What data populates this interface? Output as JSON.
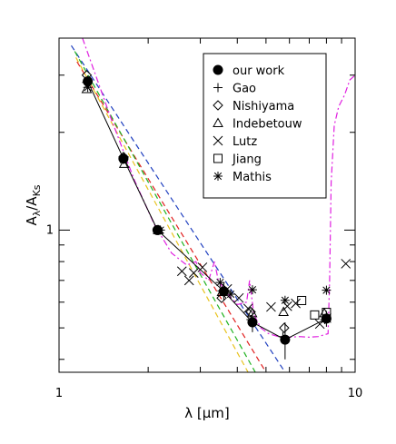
{
  "chart_data": {
    "type": "scatter",
    "title": "",
    "xlabel": {
      "main": "λ",
      "unit_open": "[",
      "unit_mu": "μ",
      "unit_rest": "m]"
    },
    "ylabel": {
      "main": "A",
      "sub1": "λ",
      "slash": "/A",
      "sub2": "Ks"
    },
    "x_scale": "log",
    "y_scale": "log",
    "xlim": [
      1,
      10
    ],
    "ylim": [
      0.365,
      3.9
    ],
    "x_tick_labels": [
      {
        "value": 1,
        "label": "1"
      },
      {
        "value": 10,
        "label": "10"
      }
    ],
    "y_tick_labels": [
      {
        "value": 1,
        "label": "1"
      }
    ],
    "grid": false,
    "legend_position": "top-right",
    "legend": [
      {
        "marker": "filled-circle",
        "label": "our work"
      },
      {
        "marker": "plus",
        "label": "Gao"
      },
      {
        "marker": "diamond",
        "label": "Nishiyama"
      },
      {
        "marker": "triangle",
        "label": "Indebetouw"
      },
      {
        "marker": "cross",
        "label": "Lutz"
      },
      {
        "marker": "square",
        "label": "Jiang"
      },
      {
        "marker": "asterisk",
        "label": "Mathis"
      }
    ],
    "series": [
      {
        "name": "our work",
        "marker": "filled-circle",
        "connected": true,
        "color": "#000000",
        "points": [
          {
            "x": 1.25,
            "y": 2.87,
            "err": 0.12
          },
          {
            "x": 1.65,
            "y": 1.66,
            "err": 0.06
          },
          {
            "x": 2.15,
            "y": 1.0,
            "err": 0.02
          },
          {
            "x": 3.6,
            "y": 0.648,
            "err": 0.04
          },
          {
            "x": 4.5,
            "y": 0.52,
            "err": 0.035
          },
          {
            "x": 5.8,
            "y": 0.46,
            "err": 0.06
          },
          {
            "x": 8.0,
            "y": 0.534,
            "err": 0.03
          }
        ]
      },
      {
        "name": "Gao",
        "marker": "plus",
        "color": "#000000",
        "points": [
          {
            "x": 1.24,
            "y": 2.85
          },
          {
            "x": 1.66,
            "y": 1.68
          },
          {
            "x": 2.16,
            "y": 1.0
          },
          {
            "x": 3.55,
            "y": 0.65
          },
          {
            "x": 4.45,
            "y": 0.53
          },
          {
            "x": 5.7,
            "y": 0.47
          },
          {
            "x": 7.9,
            "y": 0.53
          }
        ]
      },
      {
        "name": "Nishiyama",
        "marker": "diamond",
        "color": "#000000",
        "points": [
          {
            "x": 1.24,
            "y": 3.0
          },
          {
            "x": 1.65,
            "y": 1.68
          },
          {
            "x": 2.16,
            "y": 1.0
          },
          {
            "x": 3.54,
            "y": 0.618
          },
          {
            "x": 4.44,
            "y": 0.56
          },
          {
            "x": 5.76,
            "y": 0.5
          }
        ]
      },
      {
        "name": "Indebetouw",
        "marker": "triangle",
        "color": "#000000",
        "points": [
          {
            "x": 1.24,
            "y": 2.72
          },
          {
            "x": 1.66,
            "y": 1.6
          },
          {
            "x": 2.16,
            "y": 1.0
          },
          {
            "x": 3.55,
            "y": 0.645
          },
          {
            "x": 4.49,
            "y": 0.555
          },
          {
            "x": 5.73,
            "y": 0.56
          },
          {
            "x": 7.87,
            "y": 0.555
          }
        ]
      },
      {
        "name": "Lutz",
        "marker": "cross",
        "color": "#000000",
        "points": [
          {
            "x": 2.6,
            "y": 0.747
          },
          {
            "x": 2.75,
            "y": 0.7
          },
          {
            "x": 2.85,
            "y": 0.738
          },
          {
            "x": 3.05,
            "y": 0.768
          },
          {
            "x": 3.7,
            "y": 0.659
          },
          {
            "x": 4.05,
            "y": 0.618
          },
          {
            "x": 4.35,
            "y": 0.574
          },
          {
            "x": 5.2,
            "y": 0.58
          },
          {
            "x": 5.9,
            "y": 0.583
          },
          {
            "x": 6.3,
            "y": 0.595
          },
          {
            "x": 7.6,
            "y": 0.514
          },
          {
            "x": 8.0,
            "y": 0.536
          },
          {
            "x": 9.3,
            "y": 0.788
          }
        ]
      },
      {
        "name": "Jiang",
        "marker": "square",
        "color": "#000000",
        "points": [
          {
            "x": 6.6,
            "y": 0.607
          },
          {
            "x": 7.3,
            "y": 0.548
          },
          {
            "x": 8.0,
            "y": 0.558
          }
        ]
      },
      {
        "name": "Mathis",
        "marker": "asterisk",
        "color": "#000000",
        "points": [
          {
            "x": 1.25,
            "y": 2.75
          },
          {
            "x": 1.65,
            "y": 1.65
          },
          {
            "x": 2.2,
            "y": 1.0
          },
          {
            "x": 3.5,
            "y": 0.69
          },
          {
            "x": 3.8,
            "y": 0.635
          },
          {
            "x": 4.5,
            "y": 0.655
          },
          {
            "x": 5.8,
            "y": 0.608
          },
          {
            "x": 8.0,
            "y": 0.653
          }
        ]
      }
    ],
    "model_curves": [
      {
        "style": "dashed",
        "color": "#1f3fbf",
        "points": [
          {
            "x": 1.1,
            "y": 3.7
          },
          {
            "x": 5.8,
            "y": 0.365
          }
        ]
      },
      {
        "style": "dashed",
        "color": "#e11f1f",
        "points": [
          {
            "x": 1.15,
            "y": 3.3
          },
          {
            "x": 5.0,
            "y": 0.365
          }
        ]
      },
      {
        "style": "dashed",
        "color": "#1fb21f",
        "points": [
          {
            "x": 1.13,
            "y": 3.55
          },
          {
            "x": 4.6,
            "y": 0.365
          }
        ]
      },
      {
        "style": "dashed",
        "color": "#e8c21c",
        "points": [
          {
            "x": 1.14,
            "y": 3.4
          },
          {
            "x": 4.35,
            "y": 0.365
          }
        ]
      },
      {
        "style": "dash-dot",
        "color": "#e01fe0",
        "points": [
          {
            "x": 1.2,
            "y": 3.9
          },
          {
            "x": 1.5,
            "y": 2.2
          },
          {
            "x": 1.8,
            "y": 1.42
          },
          {
            "x": 2.1,
            "y": 1.04
          },
          {
            "x": 2.4,
            "y": 0.85
          },
          {
            "x": 2.7,
            "y": 0.78
          },
          {
            "x": 2.9,
            "y": 0.8
          },
          {
            "x": 3.0,
            "y": 0.74
          },
          {
            "x": 3.2,
            "y": 0.7
          },
          {
            "x": 3.35,
            "y": 0.8
          },
          {
            "x": 3.45,
            "y": 0.7
          },
          {
            "x": 3.6,
            "y": 0.66
          },
          {
            "x": 3.8,
            "y": 0.62
          },
          {
            "x": 4.0,
            "y": 0.59
          },
          {
            "x": 4.3,
            "y": 0.6
          },
          {
            "x": 4.4,
            "y": 0.7
          },
          {
            "x": 4.55,
            "y": 0.55
          },
          {
            "x": 4.8,
            "y": 0.5
          },
          {
            "x": 5.1,
            "y": 0.48
          },
          {
            "x": 5.5,
            "y": 0.47
          },
          {
            "x": 6.0,
            "y": 0.468
          },
          {
            "x": 6.5,
            "y": 0.47
          },
          {
            "x": 7.0,
            "y": 0.468
          },
          {
            "x": 7.5,
            "y": 0.47
          },
          {
            "x": 8.1,
            "y": 0.48
          },
          {
            "x": 8.2,
            "y": 0.7
          },
          {
            "x": 8.3,
            "y": 1.4
          },
          {
            "x": 8.5,
            "y": 2.1
          },
          {
            "x": 8.8,
            "y": 2.4
          },
          {
            "x": 9.2,
            "y": 2.6
          },
          {
            "x": 9.6,
            "y": 2.9
          },
          {
            "x": 9.8,
            "y": 2.95
          },
          {
            "x": 10.0,
            "y": 3.0
          }
        ]
      }
    ]
  }
}
